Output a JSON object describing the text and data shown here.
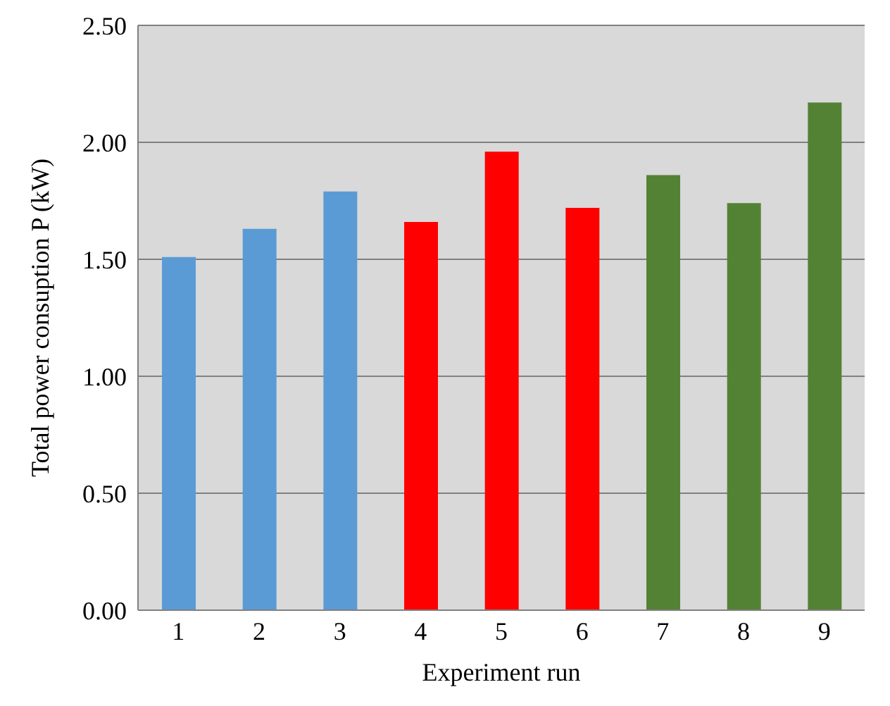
{
  "chart_data": {
    "type": "bar",
    "xlabel": "Experiment run",
    "ylabel": "Total power consuption P (kW)",
    "categories": [
      "1",
      "2",
      "3",
      "4",
      "5",
      "6",
      "7",
      "8",
      "9"
    ],
    "values": [
      1.51,
      1.63,
      1.79,
      1.66,
      1.96,
      1.72,
      1.86,
      1.74,
      2.17
    ],
    "colors": [
      "#5b9bd5",
      "#5b9bd5",
      "#5b9bd5",
      "#ff0000",
      "#ff0000",
      "#ff0000",
      "#548235",
      "#548235",
      "#548235"
    ],
    "ylim": [
      0,
      2.5
    ],
    "yticks": [
      {
        "value": 0,
        "label": "0.00"
      },
      {
        "value": 0.5,
        "label": "0.50"
      },
      {
        "value": 1,
        "label": "1.00"
      },
      {
        "value": 1.5,
        "label": "1.50"
      },
      {
        "value": 2,
        "label": "2.00"
      },
      {
        "value": 2.5,
        "label": "2.50"
      }
    ],
    "grid": "y"
  }
}
